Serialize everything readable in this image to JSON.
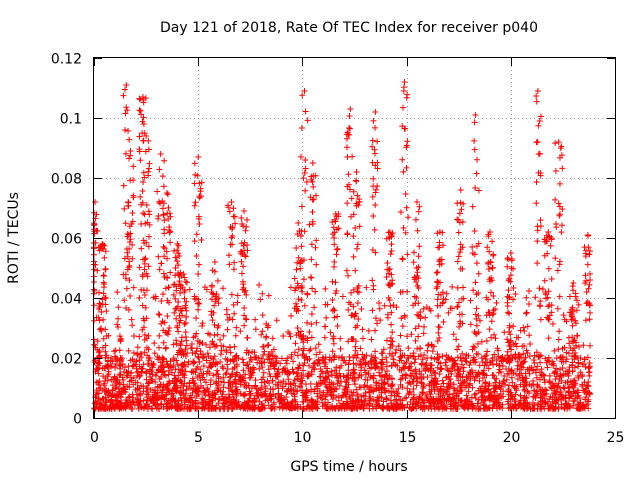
{
  "chart_data": {
    "type": "scatter",
    "title": "Day 121 of 2018, Rate Of TEC Index for receiver p040",
    "xlabel": "GPS time / hours",
    "ylabel": "ROTI / TECUs",
    "xlim": [
      0,
      25
    ],
    "ylim": [
      0,
      0.12
    ],
    "xticks": [
      0,
      5,
      10,
      15,
      20,
      25
    ],
    "yticks": [
      0,
      0.02,
      0.04,
      0.06,
      0.08,
      0.1,
      0.12
    ],
    "ytick_labels": [
      "0",
      "0.02",
      "0.04",
      "0.06",
      "0.08",
      "0.1",
      "0.12"
    ],
    "grid": true,
    "marker": "+",
    "color": "#ff0000",
    "data_time_range_hours": [
      0,
      23.8
    ],
    "baseline_roti_range": [
      0.003,
      0.02
    ],
    "peaks": [
      {
        "t": 0.05,
        "roti": 0.072
      },
      {
        "t": 0.4,
        "roti": 0.058
      },
      {
        "t": 1.55,
        "roti": 0.111
      },
      {
        "t": 1.75,
        "roti": 0.089
      },
      {
        "t": 2.35,
        "roti": 0.107
      },
      {
        "t": 2.5,
        "roti": 0.094
      },
      {
        "t": 3.2,
        "roti": 0.088
      },
      {
        "t": 3.5,
        "roti": 0.075
      },
      {
        "t": 4.0,
        "roti": 0.058
      },
      {
        "t": 4.3,
        "roti": 0.048
      },
      {
        "t": 5.0,
        "roti": 0.087
      },
      {
        "t": 5.8,
        "roti": 0.052
      },
      {
        "t": 6.6,
        "roti": 0.072
      },
      {
        "t": 7.2,
        "roti": 0.069
      },
      {
        "t": 9.8,
        "roti": 0.065
      },
      {
        "t": 10.1,
        "roti": 0.109
      },
      {
        "t": 10.5,
        "roti": 0.085
      },
      {
        "t": 11.6,
        "roti": 0.068
      },
      {
        "t": 12.3,
        "roti": 0.103
      },
      {
        "t": 12.6,
        "roti": 0.082
      },
      {
        "t": 13.5,
        "roti": 0.102
      },
      {
        "t": 14.2,
        "roti": 0.062
      },
      {
        "t": 14.9,
        "roti": 0.112
      },
      {
        "t": 15.5,
        "roti": 0.072
      },
      {
        "t": 16.6,
        "roti": 0.062
      },
      {
        "t": 17.6,
        "roti": 0.076
      },
      {
        "t": 18.3,
        "roti": 0.101
      },
      {
        "t": 19.0,
        "roti": 0.062
      },
      {
        "t": 20.0,
        "roti": 0.055
      },
      {
        "t": 21.3,
        "roti": 0.109
      },
      {
        "t": 21.8,
        "roti": 0.062
      },
      {
        "t": 22.3,
        "roti": 0.092
      },
      {
        "t": 23.0,
        "roti": 0.045
      },
      {
        "t": 23.7,
        "roti": 0.061
      }
    ]
  }
}
